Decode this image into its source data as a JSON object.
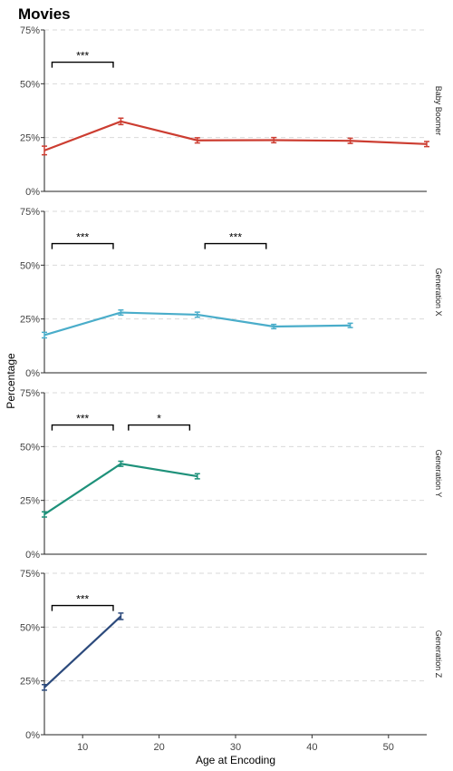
{
  "chart_data": {
    "type": "line",
    "title": "Movies",
    "xlabel": "Age at Encoding",
    "ylabel": "Percentage",
    "xlim": [
      5,
      55
    ],
    "x_ticks": [
      10,
      20,
      30,
      40,
      50
    ],
    "ylim": [
      0,
      75
    ],
    "y_ticks": [
      0,
      25,
      50,
      75
    ],
    "y_tick_labels": [
      "0%",
      "25%",
      "50%",
      "75%"
    ],
    "grid": "dashed horizontal at y ticks",
    "panels": [
      {
        "name": "Baby Boomer",
        "color": "#cc3d31",
        "x": [
          5,
          15,
          25,
          35,
          45,
          55
        ],
        "values": [
          19,
          32.5,
          23.7,
          23.8,
          23.5,
          22
        ],
        "err": [
          2,
          1.5,
          1.2,
          1.2,
          1.2,
          1.2
        ],
        "significance": [
          {
            "x1": 6,
            "x2": 14,
            "y": 60,
            "label": "***"
          }
        ]
      },
      {
        "name": "Generation X",
        "color": "#4aadca",
        "x": [
          5,
          15,
          25,
          35,
          45
        ],
        "values": [
          17.5,
          28,
          27,
          21.5,
          22
        ],
        "err": [
          1.3,
          1.2,
          1.2,
          1.0,
          1.0
        ],
        "significance": [
          {
            "x1": 6,
            "x2": 14,
            "y": 60,
            "label": "***"
          },
          {
            "x1": 26,
            "x2": 34,
            "y": 60,
            "label": "***"
          }
        ]
      },
      {
        "name": "Generation Y",
        "color": "#1e917a",
        "x": [
          5,
          15,
          25
        ],
        "values": [
          18.5,
          42,
          36.2
        ],
        "err": [
          1.2,
          1.2,
          1.2
        ],
        "significance": [
          {
            "x1": 6,
            "x2": 14,
            "y": 60,
            "label": "***"
          },
          {
            "x1": 16,
            "x2": 24,
            "y": 60,
            "label": "*"
          }
        ]
      },
      {
        "name": "Generation Z",
        "color": "#2c4a7c",
        "x": [
          5,
          15
        ],
        "values": [
          22,
          55
        ],
        "err": [
          1.3,
          1.5
        ],
        "significance": [
          {
            "x1": 6,
            "x2": 14,
            "y": 60,
            "label": "***"
          }
        ]
      }
    ]
  }
}
